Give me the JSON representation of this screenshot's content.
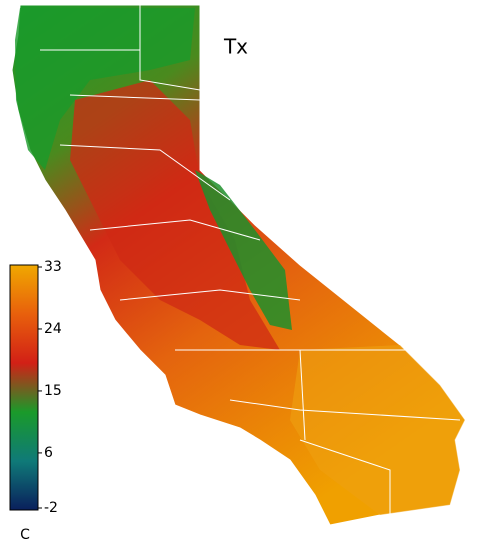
{
  "title": "Tx",
  "colorbar": {
    "unit": "C",
    "range": [
      -2,
      33
    ],
    "ticks": [
      -2,
      6,
      15,
      24,
      33
    ],
    "colors": [
      "#0a1f5c",
      "#0f7a78",
      "#1a9a2a",
      "#d22016",
      "#e8600c",
      "#f0a800"
    ]
  }
}
